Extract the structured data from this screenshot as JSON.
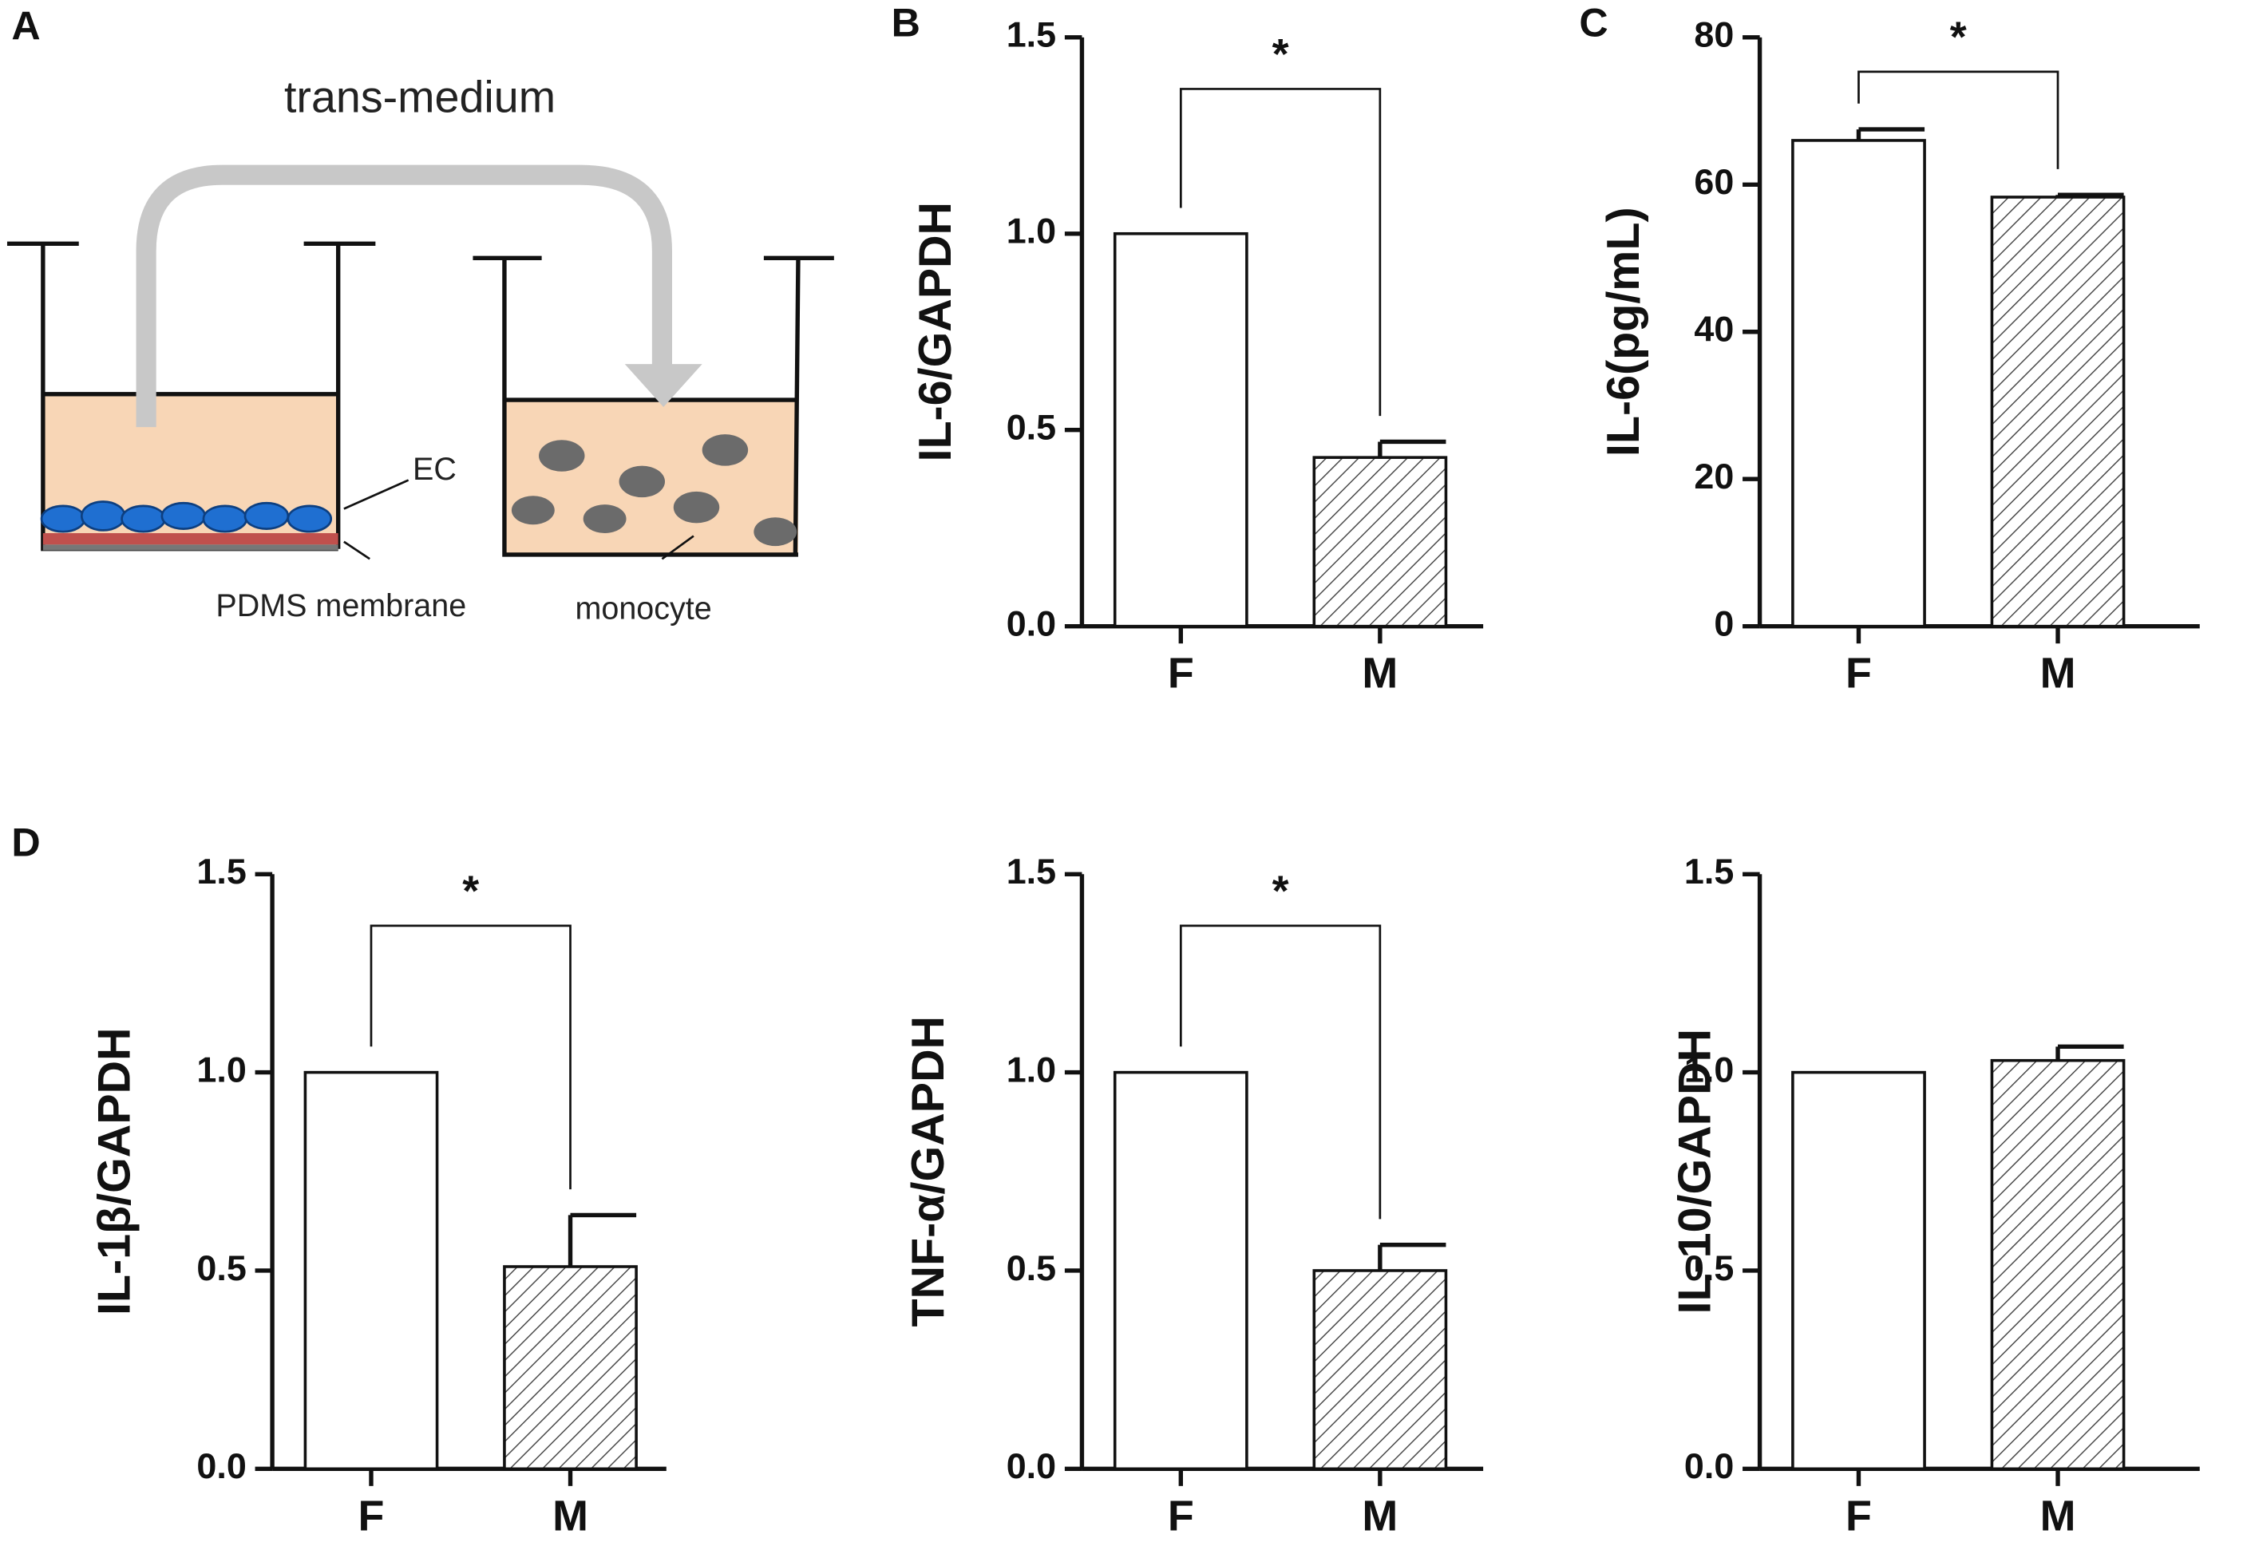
{
  "diagram": {
    "panel": "A",
    "arrow_label": "trans-medium",
    "labels": [
      "EC",
      "PDMS membrane",
      "monocyte"
    ]
  },
  "chart_data": [
    {
      "type": "bar",
      "panel": "B",
      "ylabel": "IL-6/GAPDH",
      "categories": [
        "F",
        "M"
      ],
      "values": [
        1.0,
        0.43
      ],
      "errors": [
        null,
        0.04
      ],
      "hatch": [
        false,
        true
      ],
      "ylim": [
        0,
        1.5
      ],
      "yticks": [
        {
          "value": 0,
          "label": "0.0"
        },
        {
          "value": 0.5,
          "label": "0.5"
        },
        {
          "value": 1,
          "label": "1.0"
        },
        {
          "value": 1.5,
          "label": "1.5"
        }
      ],
      "annotation": "*"
    },
    {
      "type": "bar",
      "panel": "C",
      "ylabel": "IL-6(pg/mL)",
      "categories": [
        "F",
        "M"
      ],
      "values": [
        66,
        58.3
      ],
      "errors": [
        1.5,
        0.3
      ],
      "hatch": [
        false,
        true
      ],
      "ylim": [
        0,
        80
      ],
      "yticks": [
        0,
        20,
        40,
        60,
        80
      ],
      "annotation": "*"
    },
    {
      "type": "bar",
      "panel": "D",
      "ylabel": "IL-1β/GAPDH",
      "categories": [
        "F",
        "M"
      ],
      "values": [
        1.0,
        0.51
      ],
      "errors": [
        null,
        0.13
      ],
      "hatch": [
        false,
        true
      ],
      "ylim": [
        0,
        1.5
      ],
      "yticks": [
        {
          "value": 0,
          "label": "0.0"
        },
        {
          "value": 0.5,
          "label": "0.5"
        },
        {
          "value": 1,
          "label": "1.0"
        },
        {
          "value": 1.5,
          "label": "1.5"
        }
      ],
      "annotation": "*"
    },
    {
      "type": "bar",
      "ylabel": "TNF-α/GAPDH",
      "categories": [
        "F",
        "M"
      ],
      "values": [
        1.0,
        0.5
      ],
      "errors": [
        null,
        0.065
      ],
      "hatch": [
        false,
        true
      ],
      "ylim": [
        0,
        1.5
      ],
      "yticks": [
        {
          "value": 0,
          "label": "0.0"
        },
        {
          "value": 0.5,
          "label": "0.5"
        },
        {
          "value": 1,
          "label": "1.0"
        },
        {
          "value": 1.5,
          "label": "1.5"
        }
      ],
      "annotation": "*"
    },
    {
      "type": "bar",
      "ylabel": "IL-10/GAPDH",
      "categories": [
        "F",
        "M"
      ],
      "values": [
        1.0,
        1.03
      ],
      "errors": [
        null,
        0.035
      ],
      "hatch": [
        false,
        true
      ],
      "ylim": [
        0,
        1.5
      ],
      "yticks": [
        {
          "value": 0,
          "label": "0.0"
        },
        {
          "value": 0.5,
          "label": "0.5"
        },
        {
          "value": 1,
          "label": "1.0"
        },
        {
          "value": 1.5,
          "label": "1.5"
        }
      ]
    }
  ]
}
